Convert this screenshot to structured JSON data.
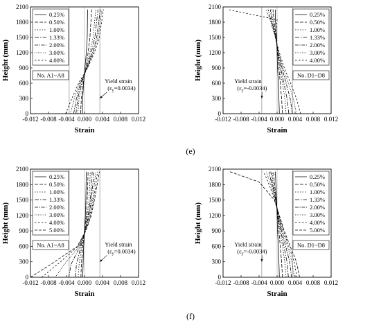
{
  "panel_labels": [
    "(e)",
    "(f)"
  ],
  "chart_data": [
    {
      "type": "line",
      "group": "(e)",
      "position": "left",
      "xlabel": "Strain",
      "ylabel": "Height (mm)",
      "xlim": [
        -0.012,
        0.012
      ],
      "ylim": [
        0,
        2100
      ],
      "xticks": [
        "-0.012",
        "-0.008",
        "-0.004",
        "0.000",
        "0.004",
        "0.008",
        "0.012"
      ],
      "yticks": [
        "0",
        "300",
        "600",
        "900",
        "1200",
        "1500",
        "1800",
        "2100"
      ],
      "yield_lines": [
        -0.0034,
        0.0034
      ],
      "grid": false,
      "legend_position": "top-left",
      "legend_entries": [
        "0.25%",
        "0.50%",
        "1.00%",
        "1.33%",
        "2.00%",
        "3.00%",
        "4.00%"
      ],
      "label_box": "No. A1~A8",
      "annotation": [
        "Yield strain",
        "(ε",
        "y",
        "=0.0034)"
      ],
      "annotation_pos": {
        "x": 0.0045,
        "y": 600
      },
      "arrow_to": {
        "x": 0.0034,
        "y": 300
      },
      "series": [
        {
          "name": "0.25%",
          "x": [
            -0.0005,
            -0.0004,
            -0.0002,
            0.0001,
            0.0004,
            0.0006,
            0.0007
          ],
          "y": [
            0,
            300,
            600,
            900,
            1200,
            1500,
            2050
          ]
        },
        {
          "name": "0.50%",
          "x": [
            -0.0009,
            -0.0007,
            -0.0003,
            0.0003,
            0.0008,
            0.0012,
            0.0016
          ],
          "y": [
            0,
            300,
            600,
            900,
            1200,
            1500,
            2050
          ]
        },
        {
          "name": "1.00%",
          "x": [
            -0.0015,
            -0.0012,
            -0.0006,
            0.0004,
            0.0012,
            0.0019,
            0.0025
          ],
          "y": [
            0,
            300,
            600,
            900,
            1200,
            1500,
            2050
          ]
        },
        {
          "name": "1.33%",
          "x": [
            -0.0019,
            -0.0015,
            -0.0007,
            0.0005,
            0.0015,
            0.0023,
            0.003
          ],
          "y": [
            0,
            300,
            600,
            900,
            1200,
            1500,
            2050
          ]
        },
        {
          "name": "2.00%",
          "x": [
            -0.0024,
            -0.0018,
            -0.0009,
            0.0006,
            0.0018,
            0.0027,
            0.0035
          ],
          "y": [
            0,
            300,
            600,
            900,
            1200,
            1500,
            2050
          ]
        },
        {
          "name": "3.00%",
          "x": [
            -0.0031,
            -0.0023,
            -0.0011,
            0.0006,
            0.002,
            0.003,
            0.0039
          ],
          "y": [
            0,
            300,
            600,
            900,
            1200,
            1500,
            2050
          ]
        },
        {
          "name": "4.00%",
          "x": [
            -0.0042,
            -0.0028,
            -0.0013,
            0.0007,
            0.0022,
            0.0033,
            0.0042
          ],
          "y": [
            0,
            300,
            600,
            900,
            1200,
            1500,
            2050
          ]
        }
      ]
    },
    {
      "type": "line",
      "group": "(e)",
      "position": "right",
      "xlabel": "Strain",
      "ylabel": "Height (mm)",
      "xlim": [
        -0.012,
        0.012
      ],
      "ylim": [
        0,
        2100
      ],
      "xticks": [
        "-0.012",
        "-0.008",
        "-0.004",
        "0.000",
        "0.004",
        "0.008",
        "0.012"
      ],
      "yticks": [
        "0",
        "300",
        "600",
        "900",
        "1200",
        "1500",
        "1800",
        "2100"
      ],
      "yield_lines": [
        -0.0034,
        0.0034
      ],
      "grid": false,
      "legend_position": "top-right",
      "legend_entries": [
        "0.25%",
        "0.50%",
        "1.00%",
        "1.33%",
        "2.00%",
        "3.00%",
        "4.00%"
      ],
      "label_box": "No. D1~D8",
      "annotation": [
        "Yield strain",
        "(ε",
        "y",
        "=-0.0034)"
      ],
      "annotation_pos": {
        "x": -0.0095,
        "y": 600
      },
      "arrow_to": {
        "x": -0.0034,
        "y": 300
      },
      "series": [
        {
          "name": "0.25%",
          "x": [
            0.0005,
            0.0004,
            0.0003,
            0.0001,
            0.0,
            -0.0001,
            -0.0004,
            -0.0004
          ],
          "y": [
            0,
            300,
            600,
            900,
            1200,
            1500,
            1850,
            2050
          ]
        },
        {
          "name": "0.50%",
          "x": [
            0.0012,
            0.001,
            0.0007,
            0.0004,
            0.0001,
            -0.0002,
            -0.0007,
            -0.0009
          ],
          "y": [
            0,
            300,
            600,
            900,
            1200,
            1500,
            1850,
            2050
          ]
        },
        {
          "name": "1.00%",
          "x": [
            0.002,
            0.0017,
            0.0012,
            0.0006,
            0.0001,
            -0.0002,
            -0.001,
            -0.0012
          ],
          "y": [
            0,
            300,
            600,
            900,
            1200,
            1500,
            1850,
            2050
          ]
        },
        {
          "name": "1.33%",
          "x": [
            0.0026,
            0.0022,
            0.0015,
            0.0008,
            0.0002,
            -0.0003,
            -0.0012,
            -0.0015
          ],
          "y": [
            0,
            300,
            600,
            900,
            1200,
            1500,
            1850,
            2050
          ]
        },
        {
          "name": "2.00%",
          "x": [
            0.0034,
            0.0029,
            0.002,
            0.0011,
            0.0003,
            -0.0003,
            -0.0014,
            -0.002
          ],
          "y": [
            0,
            300,
            600,
            900,
            1200,
            1500,
            1850,
            2050
          ]
        },
        {
          "name": "3.00%",
          "x": [
            0.0043,
            0.0036,
            0.0025,
            0.0013,
            0.0004,
            -0.0004,
            -0.0016,
            -0.0025
          ],
          "y": [
            0,
            300,
            600,
            900,
            1200,
            1500,
            1850,
            2050
          ]
        },
        {
          "name": "4.00%",
          "x": [
            0.0052,
            0.0043,
            0.003,
            0.0016,
            0.0005,
            -0.0004,
            0.0,
            -0.011
          ],
          "y": [
            0,
            300,
            600,
            900,
            1200,
            1500,
            1850,
            2050
          ]
        }
      ]
    },
    {
      "type": "line",
      "group": "(f)",
      "position": "left",
      "xlabel": "Strain",
      "ylabel": "Height (mm)",
      "xlim": [
        -0.012,
        0.012
      ],
      "ylim": [
        0,
        2100
      ],
      "xticks": [
        "-0.012",
        "-0.008",
        "-0.004",
        "0.000",
        "0.004",
        "0.008",
        "0.012"
      ],
      "yticks": [
        "0",
        "300",
        "600",
        "900",
        "1200",
        "1500",
        "1800",
        "2100"
      ],
      "yield_lines": [
        -0.0034,
        0.0034
      ],
      "grid": false,
      "legend_position": "top-left",
      "legend_entries": [
        "0.25%",
        "0.50%",
        "1.00%",
        "1.33%",
        "2.00%",
        "3.00%",
        "4.00%",
        "5.00%"
      ],
      "label_box": "No. A1~A8",
      "annotation": [
        "Yield strain",
        "(ε",
        "y",
        "=0.0034)"
      ],
      "annotation_pos": {
        "x": 0.0045,
        "y": 600
      },
      "arrow_to": {
        "x": 0.0034,
        "y": 300
      },
      "series": [
        {
          "name": "0.25%",
          "x": [
            -0.0004,
            -0.0003,
            -0.0002,
            0.0,
            0.0002,
            0.0003,
            0.0004
          ],
          "y": [
            0,
            250,
            600,
            900,
            1200,
            1500,
            2050
          ]
        },
        {
          "name": "0.50%",
          "x": [
            -0.0008,
            -0.0007,
            -0.0004,
            0.0,
            0.0004,
            0.0006,
            0.0008
          ],
          "y": [
            0,
            250,
            600,
            900,
            1200,
            1500,
            2050
          ]
        },
        {
          "name": "1.00%",
          "x": [
            -0.0014,
            -0.0012,
            -0.0006,
            0.0001,
            0.0006,
            0.001,
            0.0013
          ],
          "y": [
            0,
            250,
            600,
            900,
            1200,
            1500,
            2050
          ]
        },
        {
          "name": "1.33%",
          "x": [
            -0.002,
            -0.0018,
            -0.0008,
            0.0001,
            0.0008,
            0.0013,
            0.0017
          ],
          "y": [
            0,
            250,
            600,
            900,
            1200,
            1500,
            2050
          ]
        },
        {
          "name": "2.00%",
          "x": [
            -0.0035,
            -0.003,
            -0.001,
            0.0001,
            0.001,
            0.0015,
            0.0021
          ],
          "y": [
            0,
            250,
            600,
            900,
            1200,
            1500,
            2050
          ]
        },
        {
          "name": "3.00%",
          "x": [
            -0.0065,
            -0.0045,
            -0.0012,
            0.0002,
            0.0012,
            0.0018,
            0.0025
          ],
          "y": [
            0,
            250,
            600,
            900,
            1200,
            1500,
            2050
          ]
        },
        {
          "name": "4.00%",
          "x": [
            -0.0095,
            -0.006,
            -0.0014,
            0.0002,
            0.0013,
            0.002,
            0.0029
          ],
          "y": [
            0,
            250,
            600,
            900,
            1200,
            1500,
            2050
          ]
        },
        {
          "name": "5.00%",
          "x": [
            -0.012,
            -0.0075,
            -0.0016,
            0.0003,
            0.0015,
            0.0022,
            0.0033
          ],
          "y": [
            0,
            250,
            600,
            900,
            1200,
            1500,
            2050
          ]
        }
      ]
    },
    {
      "type": "line",
      "group": "(f)",
      "position": "right",
      "xlabel": "Strain",
      "ylabel": "Height (mm)",
      "xlim": [
        -0.012,
        0.012
      ],
      "ylim": [
        0,
        2100
      ],
      "xticks": [
        "-0.012",
        "-0.008",
        "-0.004",
        "0.000",
        "0.004",
        "0.008",
        "0.012"
      ],
      "yticks": [
        "0",
        "300",
        "600",
        "900",
        "1200",
        "1500",
        "1800",
        "2100"
      ],
      "yield_lines": [
        -0.0034,
        0.0034
      ],
      "grid": false,
      "legend_position": "top-right",
      "legend_entries": [
        "0.25%",
        "0.50%",
        "1.00%",
        "1.33%",
        "2.00%",
        "3.00%",
        "4.00%",
        "5.00%"
      ],
      "label_box": "No. D1~D8",
      "annotation": [
        "Yield strain",
        "(ε",
        "y",
        "=-0.0034)"
      ],
      "annotation_pos": {
        "x": -0.0095,
        "y": 600
      },
      "arrow_to": {
        "x": -0.0034,
        "y": 300
      },
      "series": [
        {
          "name": "0.25%",
          "x": [
            0.0005,
            0.0004,
            0.0003,
            0.0001,
            0.0,
            -0.0001,
            -0.0003,
            -0.0004
          ],
          "y": [
            0,
            300,
            600,
            900,
            1200,
            1500,
            1850,
            2050
          ]
        },
        {
          "name": "0.50%",
          "x": [
            0.0012,
            0.001,
            0.0007,
            0.0004,
            0.0001,
            -0.0002,
            -0.0006,
            -0.0008
          ],
          "y": [
            0,
            300,
            600,
            900,
            1200,
            1500,
            1850,
            2050
          ]
        },
        {
          "name": "1.00%",
          "x": [
            0.002,
            0.0017,
            0.0012,
            0.0006,
            0.0001,
            -0.0002,
            -0.0009,
            -0.0011
          ],
          "y": [
            0,
            300,
            600,
            900,
            1200,
            1500,
            1850,
            2050
          ]
        },
        {
          "name": "1.33%",
          "x": [
            0.0025,
            0.0022,
            0.0015,
            0.0008,
            0.0002,
            -0.0003,
            -0.0011,
            -0.0014
          ],
          "y": [
            0,
            300,
            600,
            900,
            1200,
            1500,
            1850,
            2050
          ]
        },
        {
          "name": "2.00%",
          "x": [
            0.0032,
            0.0028,
            0.0019,
            0.001,
            0.0003,
            -0.0003,
            -0.0013,
            -0.0018
          ],
          "y": [
            0,
            300,
            600,
            900,
            1200,
            1500,
            1850,
            2050
          ]
        },
        {
          "name": "3.00%",
          "x": [
            0.0038,
            0.0033,
            0.0023,
            0.0012,
            0.0004,
            -0.0004,
            -0.0016,
            -0.0024
          ],
          "y": [
            0,
            300,
            600,
            900,
            1200,
            1500,
            1850,
            2050
          ]
        },
        {
          "name": "4.00%",
          "x": [
            0.0044,
            0.0038,
            0.0026,
            0.0014,
            0.0004,
            -0.0005,
            -0.002,
            -0.003
          ],
          "y": [
            0,
            300,
            600,
            900,
            1200,
            1500,
            1850,
            2050
          ]
        },
        {
          "name": "5.00%",
          "x": [
            0.005,
            0.0043,
            0.0029,
            0.0016,
            0.0005,
            -0.0006,
            -0.004,
            -0.0105
          ],
          "y": [
            0,
            300,
            600,
            900,
            1200,
            1500,
            1850,
            2050
          ]
        }
      ]
    }
  ]
}
